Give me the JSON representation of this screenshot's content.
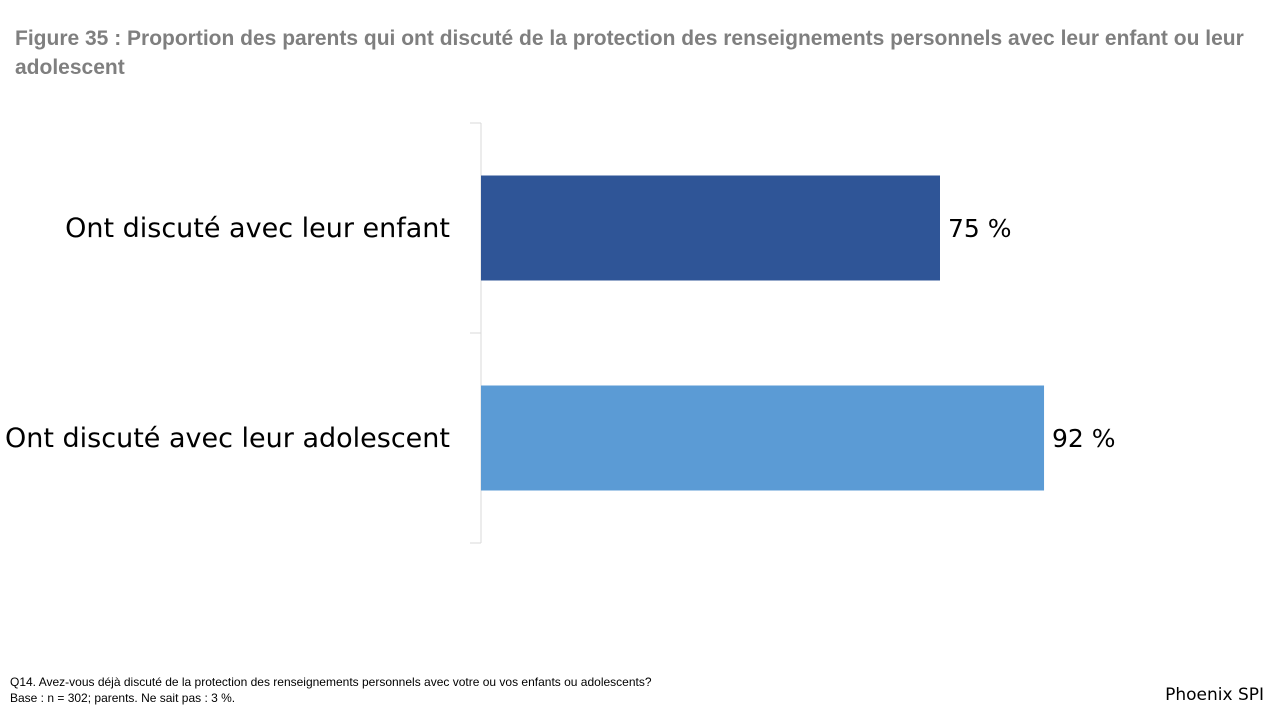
{
  "title": "Figure 35 : Proportion des parents qui ont discuté de la protection des renseignements personnels avec leur enfant ou leur adolescent",
  "chart_data": {
    "type": "bar",
    "orientation": "horizontal",
    "title": "Figure 35 : Proportion des parents qui ont discuté de la protection des renseignements personnels avec leur enfant ou leur adolescent",
    "categories": [
      "Ont discuté avec leur enfant",
      "Ont discuté avec leur adolescent"
    ],
    "values": [
      75,
      92
    ],
    "value_labels": [
      "75 %",
      "92 %"
    ],
    "colors": [
      "#2f5597",
      "#5b9bd5"
    ],
    "xlim": [
      0,
      100
    ],
    "xlabel": "",
    "ylabel": "",
    "grid": false
  },
  "footnote": {
    "question": "Q14. Avez-vous déjà discuté de la protection des renseignements personnels avec votre ou vos enfants ou adolescents?",
    "base": "Base : n = 302; parents. Ne sait pas : 3 %."
  },
  "brand": "Phoenix SPI"
}
